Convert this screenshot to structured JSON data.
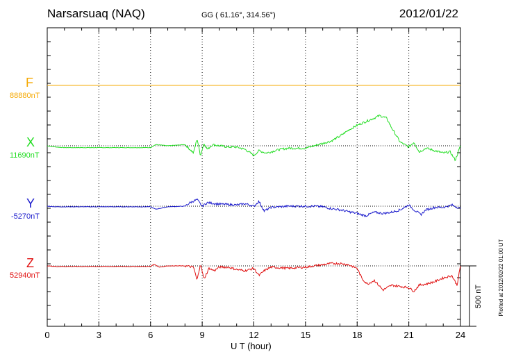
{
  "header": {
    "station": "Narsarsuaq (NAQ)",
    "coords": "GG ( 61.16°, 314.56°)",
    "date": "2012/01/22"
  },
  "components": [
    {
      "letter": "F",
      "baseline": "88880nT",
      "color": "#f5a800"
    },
    {
      "letter": "X",
      "baseline": "11690nT",
      "color": "#22dd22"
    },
    {
      "letter": "Y",
      "baseline": "-5270nT",
      "color": "#1a1acc"
    },
    {
      "letter": "Z",
      "baseline": "52940nT",
      "color": "#e01010"
    }
  ],
  "axis": {
    "xlabel": "U T (hour)",
    "ticks": [
      "0",
      "3",
      "6",
      "9",
      "12",
      "15",
      "18",
      "21",
      "24"
    ]
  },
  "scale_label": "500 nT",
  "footer": "Plotted at 2012/02/22 01:00 UT",
  "chart_data": {
    "type": "line",
    "title": "Narsarsuaq (NAQ)",
    "xlabel": "U T (hour)",
    "ylabel": "",
    "xlim": [
      0,
      24
    ],
    "grid": true,
    "scale_bar_nT": 500,
    "series": [
      {
        "name": "F",
        "baseline_nT": 88880,
        "x": [
          0,
          3,
          6,
          9,
          12,
          15,
          18,
          21,
          24
        ],
        "y": [
          0,
          0,
          0,
          0,
          0,
          0,
          0,
          0,
          0
        ]
      },
      {
        "name": "X",
        "baseline_nT": 11690,
        "x": [
          0,
          0.5,
          1,
          2,
          3,
          4,
          5,
          6,
          6.3,
          7,
          8,
          8.5,
          8.7,
          8.9,
          9.1,
          9.3,
          9.6,
          10,
          10.5,
          11,
          11.5,
          12,
          12.3,
          12.7,
          13,
          13.5,
          14,
          14.5,
          15,
          15.5,
          16,
          16.5,
          17,
          17.5,
          18,
          18.5,
          19,
          19.3,
          19.7,
          20,
          20.5,
          21,
          21.3,
          21.6,
          22,
          22.5,
          23,
          23.4,
          23.7,
          24
        ],
        "y": [
          0,
          -10,
          -15,
          -15,
          -15,
          -15,
          -15,
          -15,
          10,
          0,
          10,
          -60,
          60,
          -80,
          20,
          -30,
          10,
          0,
          -10,
          -10,
          -30,
          -80,
          -40,
          -60,
          -50,
          -30,
          -20,
          -20,
          -20,
          0,
          20,
          40,
          80,
          130,
          170,
          200,
          230,
          250,
          230,
          150,
          30,
          -10,
          30,
          -50,
          -20,
          -40,
          -60,
          -50,
          -120,
          0
        ]
      },
      {
        "name": "Y",
        "baseline_nT": -5270,
        "x": [
          0,
          0.5,
          1,
          2,
          3,
          4,
          5,
          6,
          6.3,
          7,
          8,
          8.3,
          8.7,
          9,
          9.3,
          9.8,
          10.3,
          11,
          11.5,
          12,
          12.3,
          12.6,
          13,
          14,
          15,
          15.5,
          16,
          16.5,
          17,
          17.5,
          18,
          18.5,
          19,
          19.5,
          20,
          20.5,
          21,
          21.3,
          21.7,
          22,
          22.5,
          23,
          23.5,
          24
        ],
        "y": [
          0,
          -5,
          -5,
          -5,
          -5,
          -5,
          -5,
          -5,
          -25,
          -5,
          0,
          30,
          55,
          0,
          30,
          20,
          15,
          10,
          20,
          0,
          40,
          -40,
          -10,
          0,
          0,
          0,
          -5,
          -20,
          -30,
          -45,
          -60,
          -80,
          -50,
          -60,
          -50,
          -30,
          10,
          -30,
          -70,
          -30,
          -10,
          -10,
          10,
          -20
        ]
      },
      {
        "name": "Z",
        "baseline_nT": 52940,
        "x": [
          0,
          0.5,
          1,
          2,
          3,
          4,
          5,
          6,
          6.2,
          6.5,
          7,
          8,
          8.5,
          8.7,
          8.9,
          9.1,
          9.4,
          9.7,
          10,
          10.5,
          11,
          11.5,
          12,
          12.3,
          12.6,
          13,
          14,
          15,
          15.5,
          16,
          16.5,
          17,
          17.5,
          18,
          18.3,
          18.6,
          19,
          19.5,
          20,
          20.5,
          21,
          21.3,
          21.6,
          22,
          22.5,
          23,
          23.5,
          23.8,
          24
        ],
        "y": [
          0,
          -5,
          -5,
          -5,
          -5,
          -5,
          -5,
          -5,
          15,
          -10,
          0,
          0,
          -10,
          -120,
          20,
          -110,
          -20,
          -40,
          -10,
          -10,
          -30,
          -40,
          -20,
          -80,
          -40,
          -10,
          -20,
          -10,
          0,
          10,
          20,
          20,
          10,
          -20,
          -110,
          -150,
          -120,
          -200,
          -160,
          -170,
          -180,
          -210,
          -160,
          -150,
          -130,
          -100,
          -80,
          -160,
          0
        ]
      }
    ]
  }
}
